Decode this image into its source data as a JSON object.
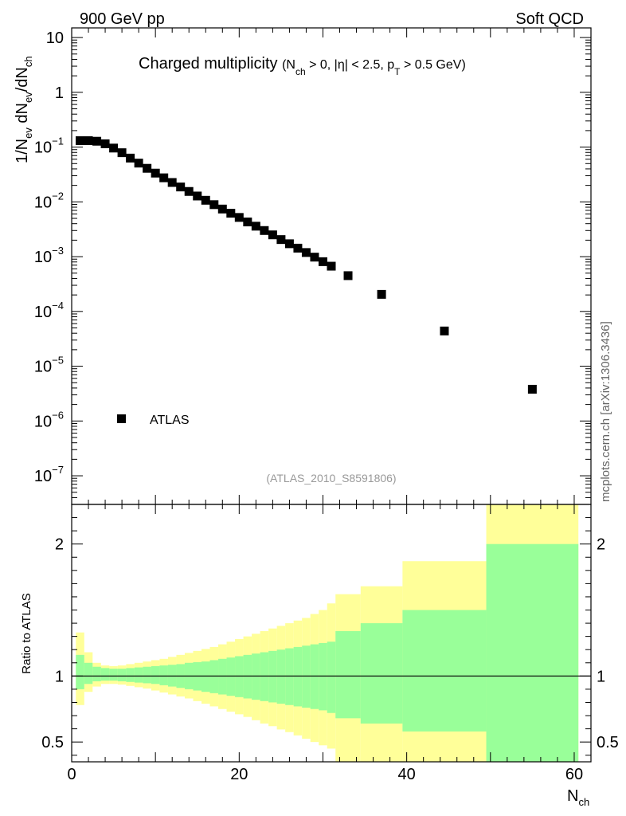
{
  "header": {
    "left": "900 GeV pp",
    "right": "Soft QCD",
    "side_note": "mcplots.cern.ch [arXiv:1306.3436]",
    "analysis_tag": "(ATLAS_2010_S8591806)"
  },
  "colors": {
    "marker": "#000000",
    "band_outer": "#ffff99",
    "band_inner": "#99ff99",
    "tag_text": "#999999"
  },
  "chart_data": [
    {
      "type": "scatter",
      "title": "Charged multiplicity",
      "title_cuts": {
        "open": "(N",
        "open_sub": "ch",
        "mid": " > 0, |η| < 2.5, p",
        "mid_sub": "T",
        "close": " > 0.5 GeV)"
      },
      "ylabel": {
        "a": "1/N",
        "a_sub": "ev",
        "b": " dN",
        "b_sub": "ev",
        "c": "/dN",
        "c_sub": "ch"
      },
      "yscale": "log",
      "ylim": [
        3e-08,
        15
      ],
      "xlim": [
        0,
        62
      ],
      "legend": {
        "position": "bottom-left",
        "entries": [
          "ATLAS"
        ]
      },
      "ytick_labels": [
        {
          "value": 10,
          "text": "10"
        },
        {
          "value": 1,
          "text": "1"
        },
        {
          "value": 0.1,
          "mant": "10",
          "exp": "−1"
        },
        {
          "value": 0.01,
          "mant": "10",
          "exp": "−2"
        },
        {
          "value": 0.001,
          "mant": "10",
          "exp": "−3"
        },
        {
          "value": 0.0001,
          "mant": "10",
          "exp": "−4"
        },
        {
          "value": 1e-05,
          "mant": "10",
          "exp": "−5"
        },
        {
          "value": 1e-06,
          "mant": "10",
          "exp": "−6"
        },
        {
          "value": 1e-07,
          "mant": "10",
          "exp": "−7"
        }
      ],
      "series": [
        {
          "name": "ATLAS",
          "x": [
            1,
            2,
            3,
            4,
            5,
            6,
            7,
            8,
            9,
            10,
            11,
            12,
            13,
            14,
            15,
            16,
            17,
            18,
            19,
            20,
            21,
            22,
            23,
            24,
            25,
            26,
            27,
            28,
            29,
            30,
            31,
            33,
            37,
            44.5,
            55
          ],
          "y": [
            0.131,
            0.131,
            0.128,
            0.115,
            0.096,
            0.079,
            0.063,
            0.051,
            0.041,
            0.0335,
            0.0275,
            0.0226,
            0.0187,
            0.0155,
            0.0128,
            0.0107,
            0.0089,
            0.0074,
            0.0062,
            0.0052,
            0.0043,
            0.0036,
            0.003,
            0.0025,
            0.00205,
            0.00172,
            0.00143,
            0.00119,
            0.00098,
            0.00081,
            0.00067,
            0.00045,
            0.000205,
            4.4e-05,
            3.8e-06
          ]
        }
      ]
    },
    {
      "type": "area",
      "ylabel": "Ratio to ATLAS",
      "xlabel": {
        "base": "N",
        "sub": "ch"
      },
      "xlim": [
        0,
        62
      ],
      "ylim": [
        0.35,
        2.3
      ],
      "x_ticks": [
        0,
        20,
        40,
        60
      ],
      "y_ticks": [
        0.5,
        1,
        2
      ],
      "reference_line": 1,
      "bands": {
        "edges": [
          0.5,
          1.5,
          2.5,
          3.5,
          4.5,
          5.5,
          6.5,
          7.5,
          8.5,
          9.5,
          10.5,
          11.5,
          12.5,
          13.5,
          14.5,
          15.5,
          16.5,
          17.5,
          18.5,
          19.5,
          20.5,
          21.5,
          22.5,
          23.5,
          24.5,
          25.5,
          26.5,
          27.5,
          28.5,
          29.5,
          30.5,
          31.5,
          34.5,
          39.5,
          49.5,
          60.5
        ],
        "inner_upper": [
          1.16,
          1.1,
          1.07,
          1.06,
          1.055,
          1.055,
          1.06,
          1.065,
          1.07,
          1.075,
          1.08,
          1.085,
          1.09,
          1.1,
          1.105,
          1.11,
          1.12,
          1.13,
          1.14,
          1.15,
          1.16,
          1.17,
          1.18,
          1.19,
          1.2,
          1.21,
          1.22,
          1.23,
          1.24,
          1.25,
          1.26,
          1.34,
          1.4,
          1.5,
          2.0
        ],
        "inner_lower": [
          0.9,
          0.94,
          0.96,
          0.965,
          0.965,
          0.96,
          0.955,
          0.95,
          0.945,
          0.94,
          0.93,
          0.92,
          0.91,
          0.9,
          0.89,
          0.88,
          0.87,
          0.86,
          0.85,
          0.84,
          0.83,
          0.82,
          0.81,
          0.8,
          0.79,
          0.78,
          0.77,
          0.76,
          0.75,
          0.74,
          0.72,
          0.68,
          0.64,
          0.58,
          0.35
        ],
        "outer_upper": [
          1.33,
          1.18,
          1.1,
          1.08,
          1.075,
          1.08,
          1.09,
          1.1,
          1.11,
          1.12,
          1.13,
          1.145,
          1.16,
          1.175,
          1.19,
          1.205,
          1.22,
          1.24,
          1.26,
          1.28,
          1.3,
          1.32,
          1.34,
          1.36,
          1.38,
          1.4,
          1.42,
          1.44,
          1.47,
          1.5,
          1.55,
          1.62,
          1.68,
          1.87,
          2.4
        ],
        "outer_lower": [
          0.78,
          0.88,
          0.92,
          0.94,
          0.94,
          0.935,
          0.925,
          0.915,
          0.905,
          0.89,
          0.875,
          0.86,
          0.845,
          0.83,
          0.81,
          0.79,
          0.77,
          0.75,
          0.73,
          0.71,
          0.69,
          0.665,
          0.64,
          0.62,
          0.595,
          0.575,
          0.55,
          0.525,
          0.5,
          0.475,
          0.45,
          0.35,
          0.35,
          0.35,
          0.35
        ]
      }
    }
  ]
}
